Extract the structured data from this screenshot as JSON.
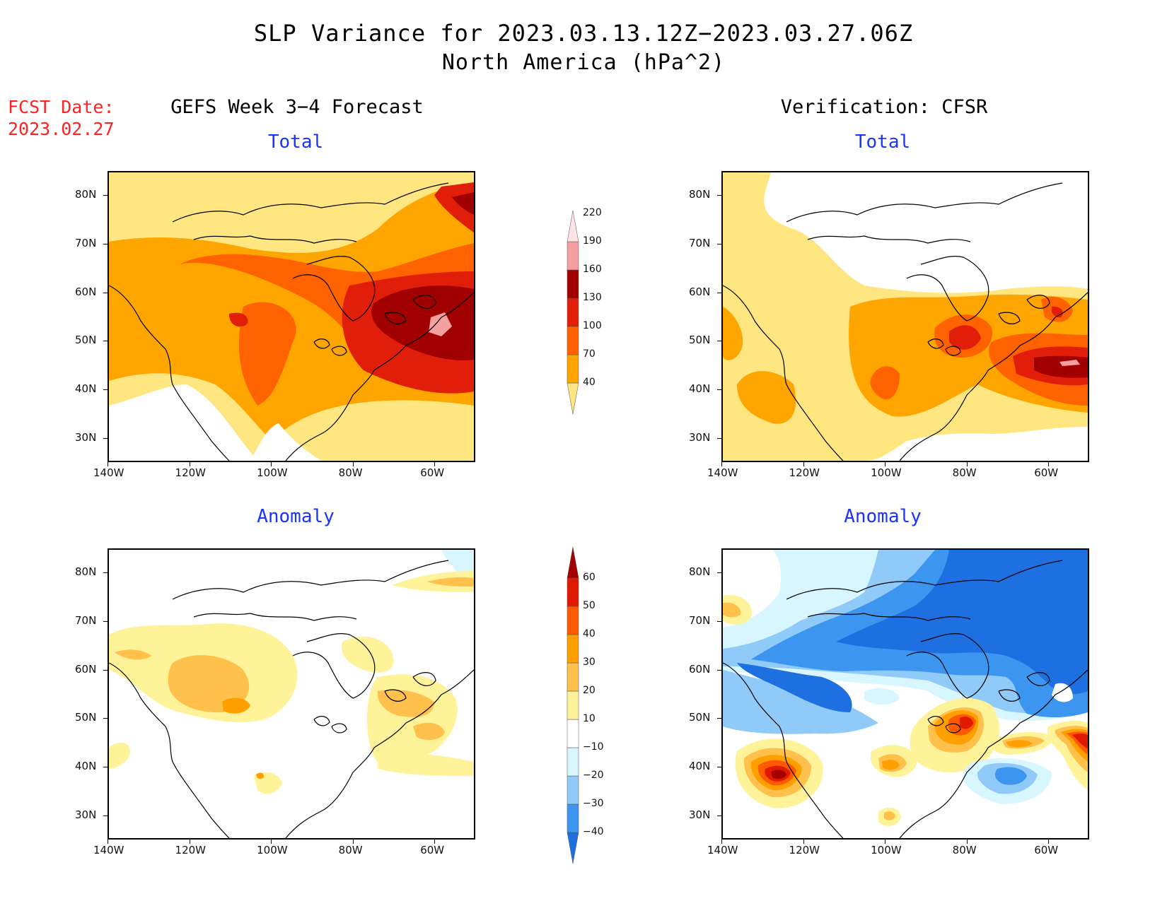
{
  "header": {
    "title_line1": "SLP Variance for 2023.03.13.12Z−2023.03.27.06Z",
    "title_line2": "North America (hPa^2)",
    "fcst_label": "FCST Date:",
    "fcst_date": "2023.02.27",
    "left_column": "GEFS Week 3−4 Forecast",
    "right_column": "Verification: CFSR"
  },
  "panels": {
    "top_left": {
      "title": "Total"
    },
    "top_right": {
      "title": "Total"
    },
    "bottom_left": {
      "title": "Anomaly"
    },
    "bottom_right": {
      "title": "Anomaly"
    }
  },
  "axes": {
    "lat_labels": [
      "80N",
      "70N",
      "60N",
      "50N",
      "40N",
      "30N"
    ],
    "lon_labels": [
      "140W",
      "120W",
      "100W",
      "80W",
      "60W"
    ],
    "lat_values": [
      80,
      70,
      60,
      50,
      40,
      30
    ],
    "lon_values": [
      -140,
      -120,
      -100,
      -80,
      -60
    ],
    "lat_range": [
      25,
      85
    ],
    "lon_range": [
      -140,
      -50
    ]
  },
  "colorbars": {
    "total": {
      "labels": [
        "40",
        "70",
        "100",
        "130",
        "160",
        "190",
        "220"
      ],
      "colors": [
        "#ffe680",
        "#ffa500",
        "#ff6300",
        "#e01e0a",
        "#a00000",
        "#f4a0a0",
        "#fde3e3"
      ]
    },
    "anomaly": {
      "labels": [
        "−40",
        "−30",
        "−20",
        "−10",
        "10",
        "20",
        "30",
        "40",
        "50",
        "60"
      ],
      "colors": [
        "#1e6fe0",
        "#3c96f0",
        "#8fcaf8",
        "#d8f6ff",
        "#ffffff",
        "#fff39a",
        "#ffc04c",
        "#ffa000",
        "#ff5a00",
        "#e01a00",
        "#a40000"
      ]
    }
  }
}
